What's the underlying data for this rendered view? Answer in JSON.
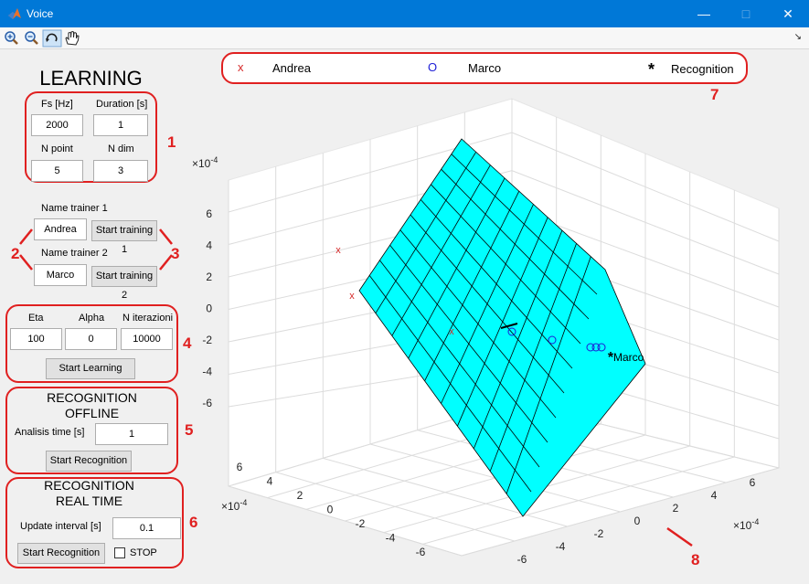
{
  "window": {
    "title": "Voice"
  },
  "learning": {
    "title": "LEARNING",
    "fs_label": "Fs [Hz]",
    "fs_value": "2000",
    "duration_label": "Duration [s]",
    "duration_value": "1",
    "npoint_label": "N point",
    "npoint_value": "5",
    "ndim_label": "N dim",
    "ndim_value": "3"
  },
  "trainers": {
    "name1_label": "Name trainer 1",
    "name1_value": "Andrea",
    "train1_label": "Start training 1",
    "name2_label": "Name trainer 2",
    "name2_value": "Marco",
    "train2_label": "Start training 2"
  },
  "training_params": {
    "eta_label": "Eta",
    "eta_value": "100",
    "alpha_label": "Alpha",
    "alpha_value": "0",
    "niter_label": "N iterazioni",
    "niter_value": "10000",
    "start_label": "Start Learning"
  },
  "offline": {
    "title_line1": "RECOGNITION",
    "title_line2": "OFFLINE",
    "time_label": "Analisis time [s]",
    "time_value": "1",
    "start_label": "Start Recognition"
  },
  "realtime": {
    "title_line1": "RECOGNITION",
    "title_line2": "REAL TIME",
    "interval_label": "Update interval [s]",
    "interval_value": "0.1",
    "start_label": "Start Recognition",
    "stop_label": "STOP"
  },
  "legend": {
    "entries": [
      {
        "marker": "x",
        "label": "Andrea",
        "color": "#d62828"
      },
      {
        "marker": "O",
        "label": "Marco",
        "color": "#1d1dd6"
      },
      {
        "marker": "*",
        "label": "Recognition",
        "color": "#000000"
      }
    ]
  },
  "annotations": [
    "1",
    "2",
    "3",
    "4",
    "5",
    "6",
    "7",
    "8"
  ],
  "plot": {
    "exponent": "×10",
    "exponent_power": "-4",
    "z_ticks": [
      "6",
      "4",
      "2",
      "0",
      "-2",
      "-4",
      "-6"
    ],
    "x_ticks": [
      "6",
      "4",
      "2",
      "0",
      "-2",
      "-4",
      "-6"
    ],
    "y_ticks": [
      "-6",
      "-4",
      "-2",
      "0",
      "2",
      "4",
      "6"
    ],
    "point_label": "Marco",
    "surface_color": "#00ffff"
  }
}
